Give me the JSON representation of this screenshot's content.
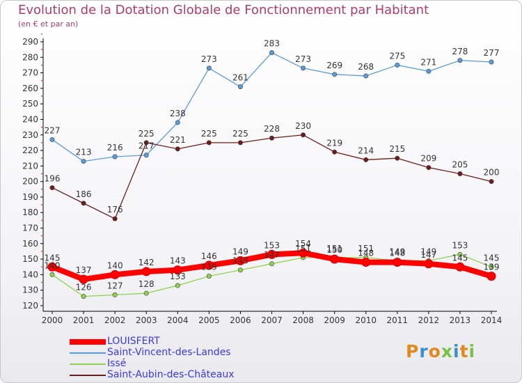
{
  "title": "Evolution de la Dotation Globale de Fonctionnement par Habitant",
  "subtitle": "(en € et par an)",
  "logo_text": "Proxiti",
  "chart_data": {
    "type": "line",
    "title": "Evolution de la Dotation Globale de Fonctionnement par Habitant",
    "subtitle": "(en € et par an)",
    "xlabel": "",
    "ylabel": "",
    "x": [
      "2000",
      "2001",
      "2002",
      "2003",
      "2004",
      "2005",
      "2006",
      "2007",
      "2008",
      "2009",
      "2010",
      "2011",
      "2012",
      "2013",
      "2014"
    ],
    "ylim": [
      120,
      290
    ],
    "yticks": [
      120,
      130,
      140,
      150,
      160,
      170,
      180,
      190,
      200,
      210,
      220,
      230,
      240,
      250,
      260,
      270,
      280,
      290
    ],
    "grid": false,
    "legend": "bottom-left",
    "series": [
      {
        "name": "LOUISFERT",
        "color": "#ff0000",
        "values": [
          145,
          137,
          140,
          142,
          143,
          146,
          149,
          153,
          154,
          150,
          148,
          148,
          147,
          145,
          139
        ],
        "show_labels": true
      },
      {
        "name": "Saint-Vincent-des-Landes",
        "color": "#5b9bd5",
        "values": [
          227,
          213,
          216,
          217,
          238,
          273,
          261,
          283,
          273,
          269,
          268,
          275,
          271,
          278,
          277
        ],
        "show_labels": true
      },
      {
        "name": "Issé",
        "color": "#8fd14f",
        "values": [
          140,
          126,
          127,
          128,
          133,
          139,
          143,
          147,
          151,
          151,
          151,
          149,
          149,
          153,
          145
        ],
        "show_labels": true
      },
      {
        "name": "Saint-Aubin-des-Châteaux",
        "color": "#6b1c1c",
        "values": [
          196,
          186,
          176,
          225,
          221,
          225,
          225,
          228,
          230,
          219,
          214,
          215,
          209,
          205,
          200
        ],
        "show_labels": true
      }
    ]
  }
}
